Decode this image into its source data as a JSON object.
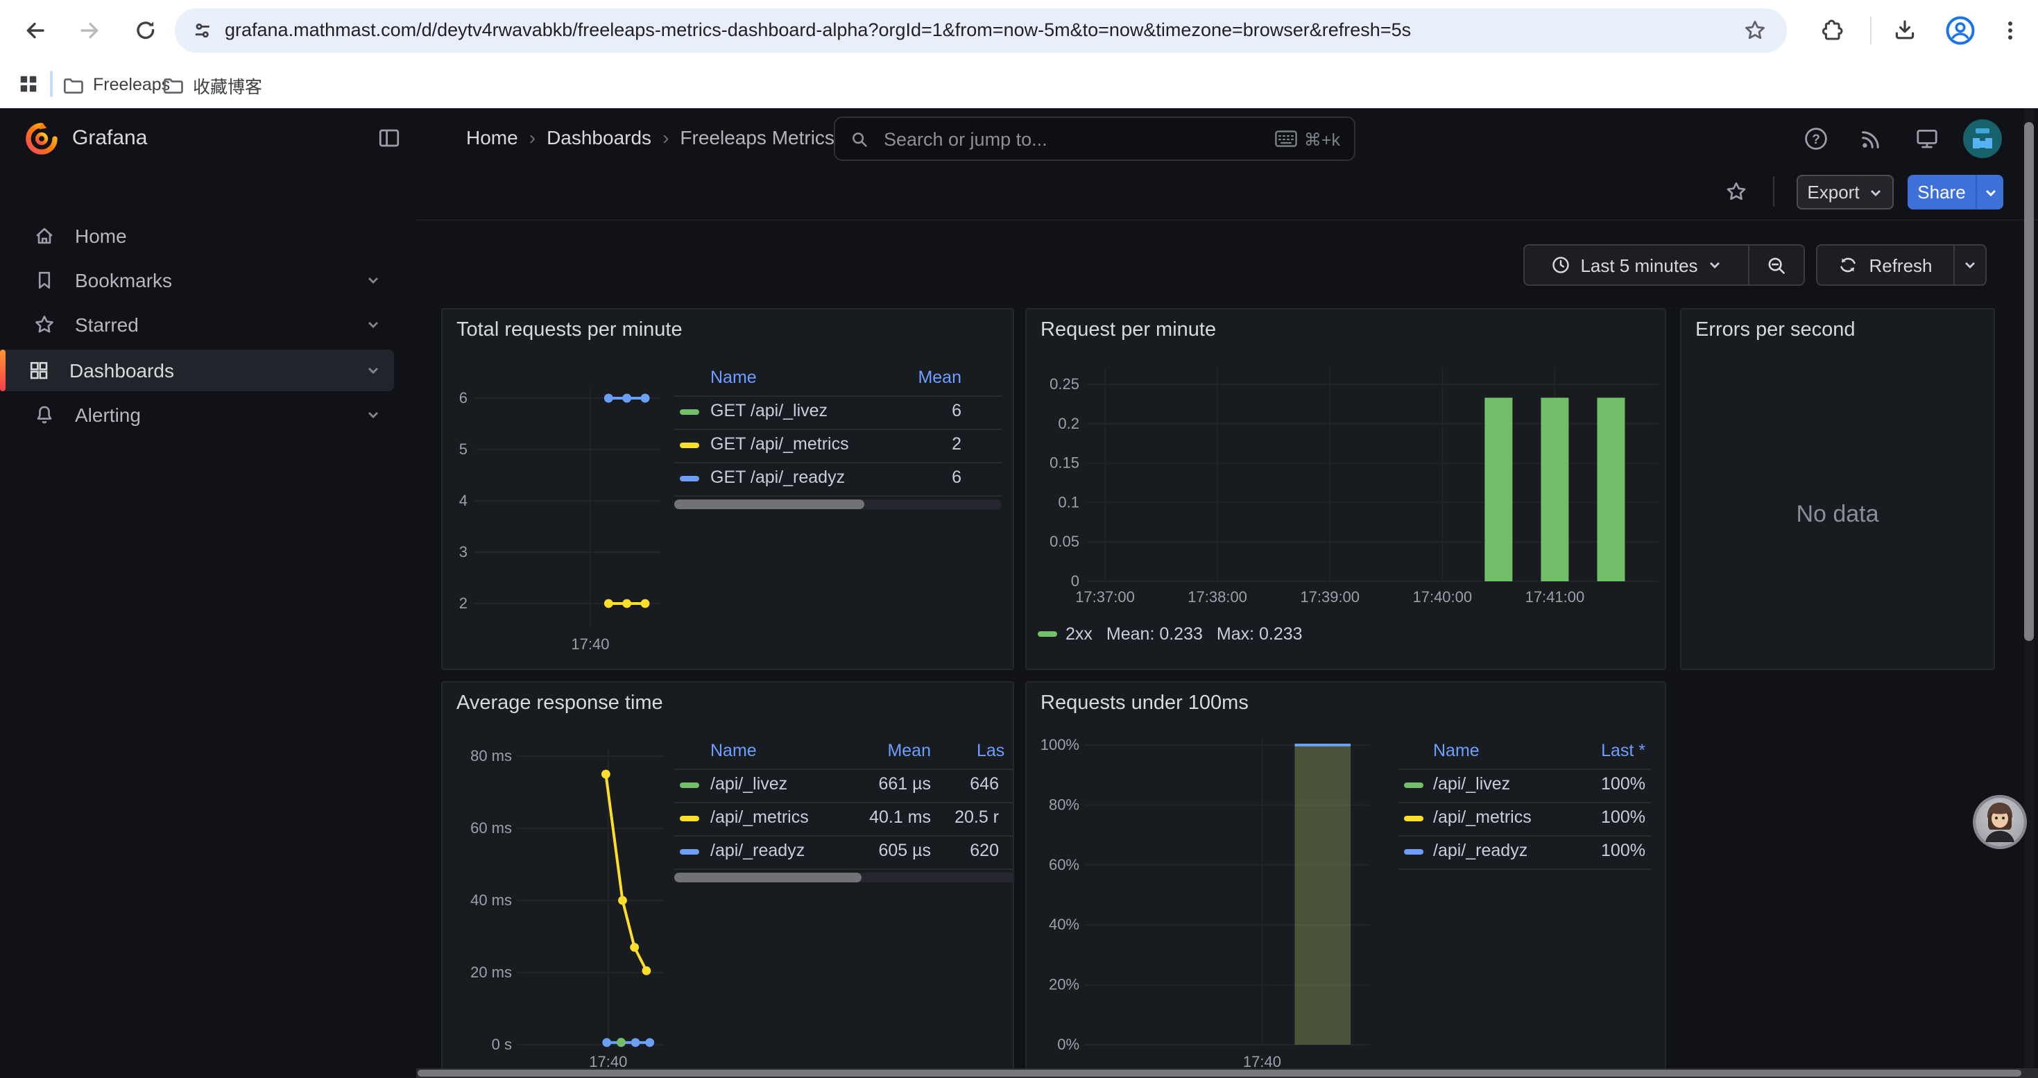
{
  "browser": {
    "url": "grafana.mathmast.com/d/deytv4rwavabkb/freeleaps-metrics-dashboard-alpha?orgId=1&from=now-5m&to=now&timezone=browser&refresh=5s",
    "bookmarks": [
      "Freeleaps",
      "收藏博客"
    ]
  },
  "nav": {
    "brand": "Grafana",
    "breadcrumb": [
      "Home",
      "Dashboards",
      "Freeleaps Metrics Dashboard (ALPHA)"
    ],
    "separator": "›",
    "search_placeholder": "Search or jump to...",
    "search_shortcut": "⌘+k"
  },
  "sidebar": {
    "items": [
      "Home",
      "Bookmarks",
      "Starred",
      "Dashboards",
      "Alerting"
    ],
    "active": "Dashboards"
  },
  "toolbar": {
    "export": "Export",
    "share": "Share"
  },
  "timebar": {
    "range": "Last 5 minutes",
    "refresh": "Refresh"
  },
  "colors": {
    "green": "#73bf69",
    "yellow": "#fade2a",
    "blue": "#6d9ef7",
    "header_blue": "#6e9fff",
    "share_blue": "#3d71d9",
    "bar_fill": "rgba(136,155,88,0.45)"
  },
  "panels": [
    {
      "title": "Total requests per minute",
      "legend": {
        "columns": [
          "Name",
          "Mean"
        ],
        "rows": [
          {
            "name": "GET /api/_livez",
            "color": "green",
            "values": [
              "6"
            ]
          },
          {
            "name": "GET /api/_metrics",
            "color": "yellow",
            "values": [
              "2"
            ]
          },
          {
            "name": "GET /api/_readyz",
            "color": "blue",
            "values": [
              "6"
            ]
          }
        ]
      }
    },
    {
      "title": "Request per minute",
      "legend_inline": {
        "series": "2xx",
        "mean": "Mean: 0.233",
        "max": "Max: 0.233",
        "color": "green"
      }
    },
    {
      "title": "Errors per second",
      "message": "No data"
    },
    {
      "title": "Average response time",
      "legend": {
        "columns": [
          "Name",
          "Mean",
          "Las"
        ],
        "rows": [
          {
            "name": "/api/_livez",
            "color": "green",
            "values": [
              "661 µs",
              "646"
            ]
          },
          {
            "name": "/api/_metrics",
            "color": "yellow",
            "values": [
              "40.1 ms",
              "20.5 r"
            ]
          },
          {
            "name": "/api/_readyz",
            "color": "blue",
            "values": [
              "605 µs",
              "620"
            ]
          }
        ]
      }
    },
    {
      "title": "Requests under 100ms",
      "legend": {
        "columns": [
          "Name",
          "Last *"
        ],
        "rows": [
          {
            "name": "/api/_livez",
            "color": "green",
            "values": [
              "100%"
            ]
          },
          {
            "name": "/api/_metrics",
            "color": "yellow",
            "values": [
              "100%"
            ]
          },
          {
            "name": "/api/_readyz",
            "color": "blue",
            "values": [
              "100%"
            ]
          }
        ]
      }
    }
  ],
  "chart_data": [
    {
      "panel": "Total requests per minute",
      "type": "line",
      "x_range": [
        "17:36:50",
        "17:41:55"
      ],
      "ylim": [
        1.5,
        6.3
      ],
      "grid": true,
      "legend_position": "right-table",
      "yticks": [
        {
          "v": 6,
          "label": "6"
        },
        {
          "v": 5,
          "label": "5"
        },
        {
          "v": 4,
          "label": "4"
        },
        {
          "v": 3,
          "label": "3"
        },
        {
          "v": 2,
          "label": "2"
        }
      ],
      "xticks": [
        {
          "t": "17:40:00",
          "label": "17:40"
        }
      ],
      "series": [
        {
          "name": "GET /api/_livez",
          "color": "green",
          "mean": 6,
          "points": [
            [
              "17:40:30",
              6
            ],
            [
              "17:41:00",
              6
            ],
            [
              "17:41:30",
              6
            ]
          ]
        },
        {
          "name": "GET /api/_metrics",
          "color": "yellow",
          "mean": 2,
          "points": [
            [
              "17:40:30",
              2
            ],
            [
              "17:41:00",
              2
            ],
            [
              "17:41:30",
              2
            ]
          ]
        },
        {
          "name": "GET /api/_readyz",
          "color": "blue",
          "mean": 6,
          "points": [
            [
              "17:40:30",
              6
            ],
            [
              "17:41:00",
              6
            ],
            [
              "17:41:30",
              6
            ]
          ]
        }
      ]
    },
    {
      "panel": "Request per minute",
      "type": "bar",
      "x_range": [
        "17:36:50",
        "17:41:55"
      ],
      "ylim": [
        0,
        0.27
      ],
      "grid": true,
      "legend_position": "bottom",
      "yticks": [
        {
          "v": 0.25,
          "label": "0.25"
        },
        {
          "v": 0.2,
          "label": "0.2"
        },
        {
          "v": 0.15,
          "label": "0.15"
        },
        {
          "v": 0.1,
          "label": "0.1"
        },
        {
          "v": 0.05,
          "label": "0.05"
        },
        {
          "v": 0,
          "label": "0"
        }
      ],
      "xticks": [
        {
          "t": "17:37:00",
          "label": "17:37:00"
        },
        {
          "t": "17:38:00",
          "label": "17:38:00"
        },
        {
          "t": "17:39:00",
          "label": "17:39:00"
        },
        {
          "t": "17:40:00",
          "label": "17:40:00"
        },
        {
          "t": "17:41:00",
          "label": "17:41:00"
        }
      ],
      "series": [
        {
          "name": "2xx",
          "color": "green",
          "mean": 0.233,
          "max": 0.233,
          "points": [
            [
              "17:40:30",
              0.233
            ],
            [
              "17:41:00",
              0.233
            ],
            [
              "17:41:30",
              0.233
            ]
          ]
        }
      ]
    },
    {
      "panel": "Errors per second",
      "type": "none",
      "message": "No data"
    },
    {
      "panel": "Average response time",
      "type": "line",
      "x_range": [
        "17:36:50",
        "17:41:55"
      ],
      "ylim": [
        0,
        82
      ],
      "unit": "ms",
      "grid": true,
      "legend_position": "right-table",
      "yticks": [
        {
          "v": 80,
          "label": "80 ms"
        },
        {
          "v": 60,
          "label": "60 ms"
        },
        {
          "v": 40,
          "label": "40 ms"
        },
        {
          "v": 20,
          "label": "20 ms"
        },
        {
          "v": 0,
          "label": "0 s"
        }
      ],
      "xticks": [
        {
          "t": "17:40:00",
          "label": "17:40"
        }
      ],
      "series": [
        {
          "name": "/api/_metrics",
          "color": "yellow",
          "points": [
            [
              "17:39:55",
              75
            ],
            [
              "17:40:30",
              40
            ],
            [
              "17:40:55",
              27
            ],
            [
              "17:41:20",
              20.5
            ]
          ]
        },
        {
          "name": "/api/_readyz",
          "color": "blue",
          "points": [
            [
              "17:39:57",
              0.6
            ],
            [
              "17:40:27",
              0.6
            ],
            [
              "17:40:57",
              0.6
            ],
            [
              "17:41:27",
              0.6
            ]
          ]
        },
        {
          "name": "/api/_livez",
          "color": "green",
          "points": [
            [
              "17:40:27",
              0.66
            ]
          ]
        }
      ]
    },
    {
      "panel": "Requests under 100ms",
      "type": "bar-area",
      "x_range": [
        "17:36:50",
        "17:41:55"
      ],
      "ylim": [
        0,
        102
      ],
      "unit": "%",
      "grid": true,
      "legend_position": "right-table",
      "yticks": [
        {
          "v": 100,
          "label": "100%"
        },
        {
          "v": 80,
          "label": "80%"
        },
        {
          "v": 60,
          "label": "60%"
        },
        {
          "v": 40,
          "label": "40%"
        },
        {
          "v": 20,
          "label": "20%"
        },
        {
          "v": 0,
          "label": "0%"
        }
      ],
      "xticks": [
        {
          "t": "17:40:00",
          "label": "17:40"
        }
      ],
      "bar": {
        "from": "17:40:35",
        "to": "17:41:35",
        "value": 100,
        "top_color": "blue"
      }
    }
  ]
}
